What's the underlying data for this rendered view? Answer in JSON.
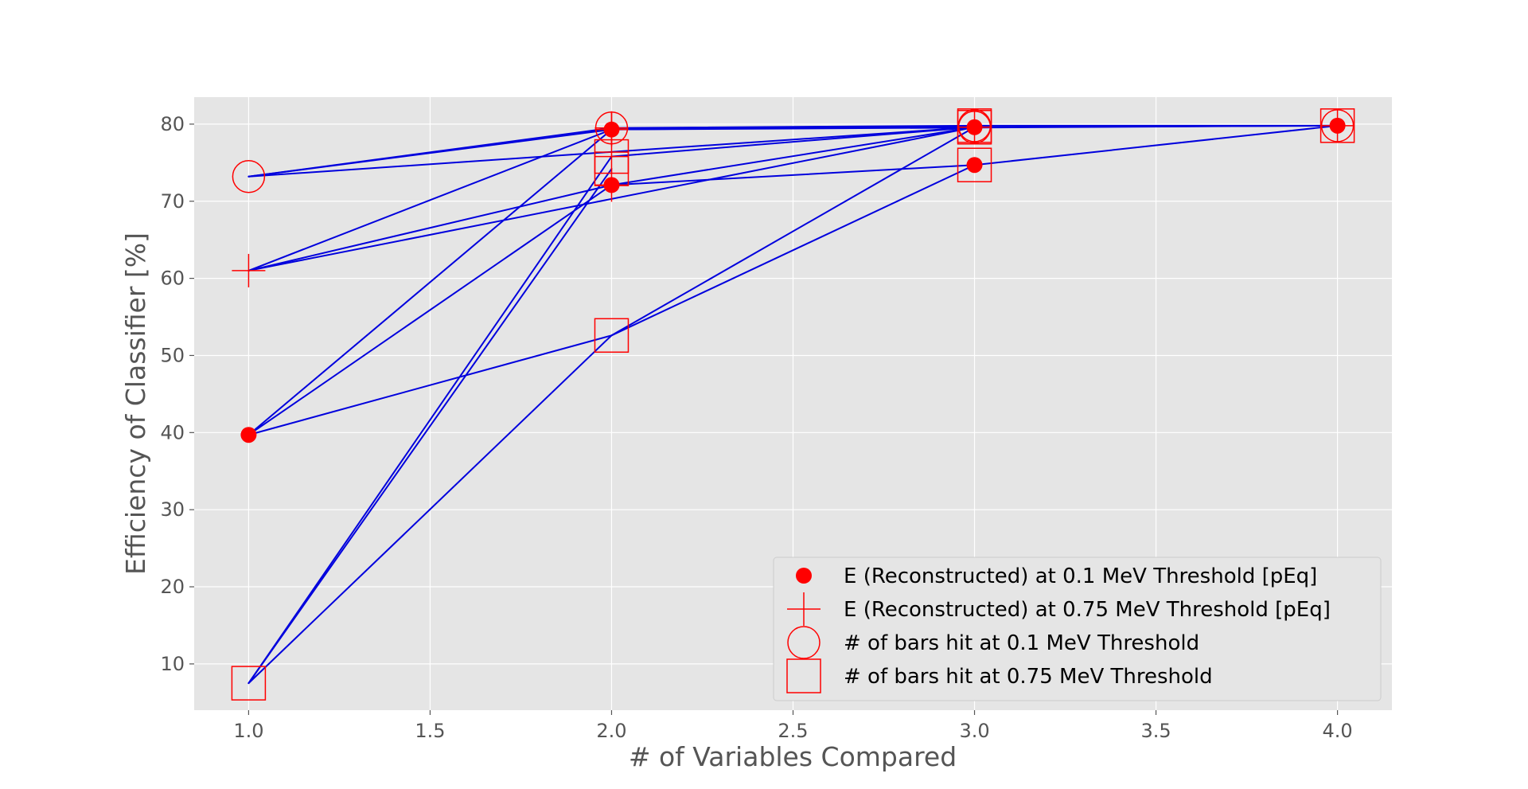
{
  "chart_data": {
    "type": "line",
    "title": "",
    "xlabel": "# of Variables Compared",
    "ylabel": "Efficiency of Classifier [%]",
    "xlim": [
      0.85,
      4.15
    ],
    "ylim": [
      4.0,
      83.5
    ],
    "xticks": [
      "1.0",
      "1.5",
      "2.0",
      "2.5",
      "3.0",
      "3.5",
      "4.0"
    ],
    "yticks": [
      "10",
      "20",
      "30",
      "40",
      "50",
      "60",
      "70",
      "80"
    ],
    "grid": true,
    "legend_position": "lower-right",
    "colors": {
      "background": "#e5e5e5",
      "grid": "#ffffff",
      "line": "#0000dd",
      "marker": "#ff0000"
    },
    "connections": [
      [
        [
          1,
          73.2
        ],
        [
          2,
          79.5
        ]
      ],
      [
        [
          1,
          73.2
        ],
        [
          2,
          79.3
        ]
      ],
      [
        [
          1,
          73.2
        ],
        [
          3,
          79.6
        ]
      ],
      [
        [
          1,
          61.0
        ],
        [
          2,
          79.3
        ]
      ],
      [
        [
          1,
          61.0
        ],
        [
          2,
          72.1
        ]
      ],
      [
        [
          1,
          61.0
        ],
        [
          3,
          79.6
        ]
      ],
      [
        [
          1,
          39.7
        ],
        [
          2,
          79.3
        ]
      ],
      [
        [
          1,
          39.7
        ],
        [
          2,
          72.1
        ]
      ],
      [
        [
          1,
          39.7
        ],
        [
          2,
          52.6
        ]
      ],
      [
        [
          1,
          7.5
        ],
        [
          2,
          75.8
        ]
      ],
      [
        [
          1,
          7.5
        ],
        [
          2,
          74.2
        ]
      ],
      [
        [
          1,
          7.5
        ],
        [
          2,
          52.6
        ]
      ],
      [
        [
          2,
          79.5
        ],
        [
          3,
          79.8
        ]
      ],
      [
        [
          2,
          79.3
        ],
        [
          3,
          79.7
        ]
      ],
      [
        [
          2,
          79.3
        ],
        [
          4,
          79.8
        ]
      ],
      [
        [
          2,
          75.8
        ],
        [
          3,
          79.6
        ]
      ],
      [
        [
          2,
          72.1
        ],
        [
          3,
          74.7
        ]
      ],
      [
        [
          2,
          72.1
        ],
        [
          3,
          79.6
        ]
      ],
      [
        [
          2,
          52.6
        ],
        [
          3,
          74.7
        ]
      ],
      [
        [
          2,
          52.6
        ],
        [
          3,
          79.6
        ]
      ],
      [
        [
          3,
          79.8
        ],
        [
          4,
          79.8
        ]
      ],
      [
        [
          3,
          79.6
        ],
        [
          4,
          79.8
        ]
      ],
      [
        [
          3,
          74.7
        ],
        [
          4,
          79.8
        ]
      ]
    ],
    "series": [
      {
        "name": "E (Reconstructed) at 0.1 MeV Threshold [pEq]",
        "marker": "filled-circle",
        "points": [
          [
            1,
            39.7
          ],
          [
            2,
            72.1
          ],
          [
            2,
            79.3
          ],
          [
            3,
            74.7
          ],
          [
            3,
            79.6
          ],
          [
            4,
            79.8
          ]
        ]
      },
      {
        "name": "E (Reconstructed) at 0.75 MeV Threshold [pEq]",
        "marker": "plus",
        "points": [
          [
            1,
            61.0
          ],
          [
            2,
            72.1
          ],
          [
            2,
            79.3
          ],
          [
            2,
            79.5
          ],
          [
            2,
            75.8
          ],
          [
            3,
            79.6
          ],
          [
            4,
            79.8
          ]
        ]
      },
      {
        "name": "# of bars hit at 0.1 MeV Threshold",
        "marker": "open-circle",
        "points": [
          [
            1,
            73.2
          ],
          [
            2,
            79.5
          ],
          [
            3,
            79.6
          ],
          [
            3,
            79.8
          ],
          [
            4,
            79.8
          ]
        ]
      },
      {
        "name": "# of bars hit at 0.75 MeV Threshold",
        "marker": "open-square",
        "points": [
          [
            1,
            7.5
          ],
          [
            2,
            52.6
          ],
          [
            2,
            75.8
          ],
          [
            2,
            74.2
          ],
          [
            3,
            74.7
          ],
          [
            3,
            79.6
          ],
          [
            3,
            79.8
          ],
          [
            4,
            79.8
          ]
        ]
      }
    ]
  }
}
